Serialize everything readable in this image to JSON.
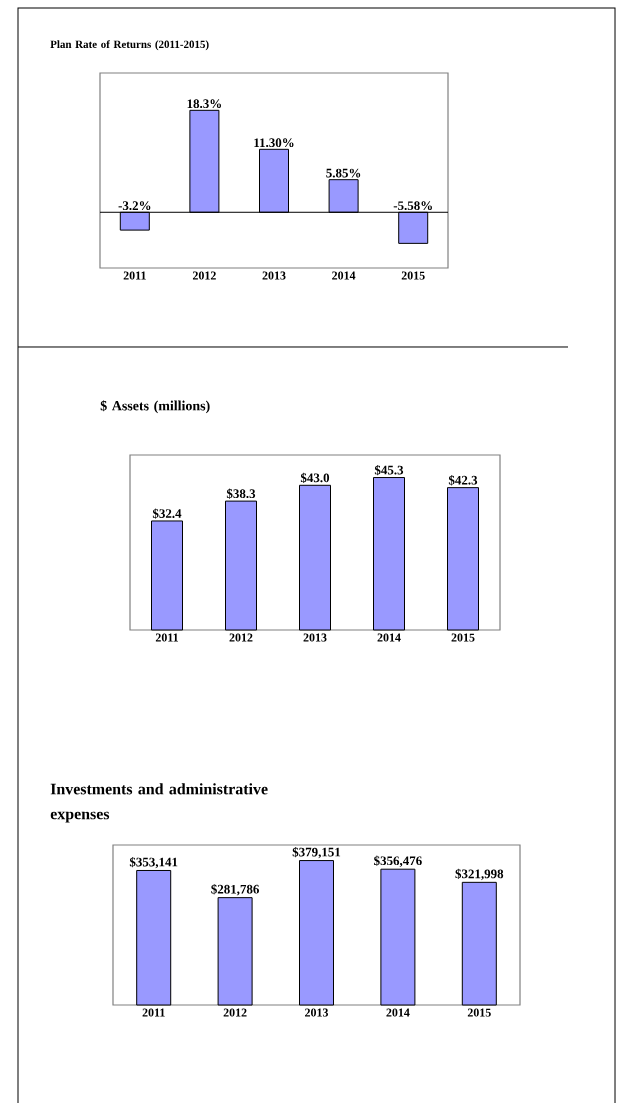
{
  "chart_data": [
    {
      "type": "bar",
      "title": "Plan Rate of  Returns (2011-2015)",
      "categories": [
        "2011",
        "2012",
        "2013",
        "2014",
        "2015"
      ],
      "values": [
        -3.2,
        18.3,
        11.3,
        5.85,
        -5.58
      ],
      "value_labels": [
        "-3.2%",
        "18.3%",
        "11.30%",
        "5.85%",
        "-5.58%"
      ],
      "color": "#9999ff",
      "ylim": [
        -10,
        25
      ],
      "tick_labels": "x"
    },
    {
      "type": "bar",
      "title": "$ Assets (millions)",
      "categories": [
        "2011",
        "2012",
        "2013",
        "2014",
        "2015"
      ],
      "values": [
        32.4,
        38.3,
        43.0,
        45.3,
        42.3
      ],
      "value_labels": [
        "$32.4",
        "$38.3",
        "$43.0",
        "$45.3",
        "$42.3"
      ],
      "color": "#9999ff",
      "ylim": [
        0,
        52
      ],
      "tick_labels": "x"
    },
    {
      "type": "bar",
      "title": "Investments and administrative expenses",
      "categories": [
        "2011",
        "2012",
        "2013",
        "2014",
        "2015"
      ],
      "values": [
        353141,
        281786,
        379151,
        356476,
        321998
      ],
      "value_labels": [
        "$353,141",
        "$281,786",
        "$379,151",
        "$356,476",
        "$321,998"
      ],
      "color": "#9999ff",
      "ylim": [
        0,
        420000
      ],
      "tick_labels": "x"
    }
  ]
}
